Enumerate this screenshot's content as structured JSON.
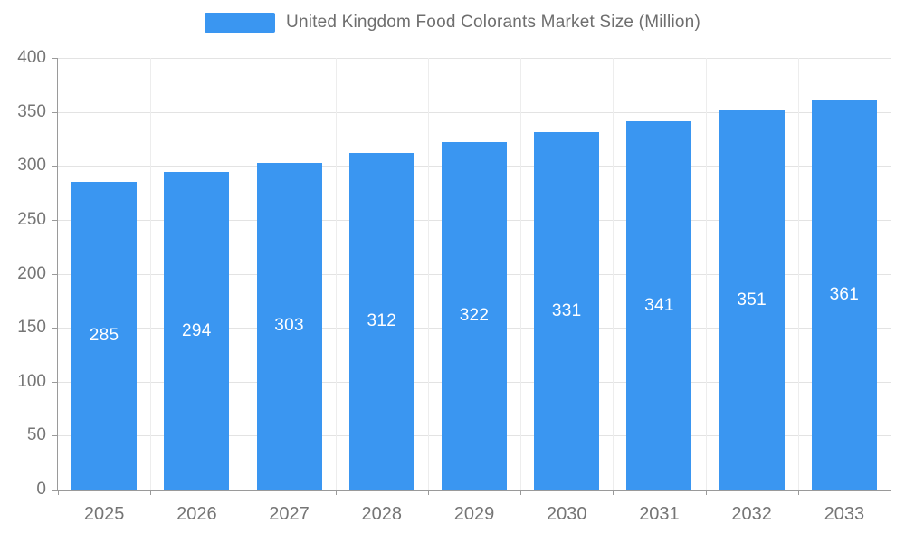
{
  "legend": {
    "title": "United Kingdom Food Colorants Market Size (Million)"
  },
  "chart_data": {
    "type": "bar",
    "title": "United Kingdom Food Colorants Market Size (Million)",
    "categories": [
      "2025",
      "2026",
      "2027",
      "2028",
      "2029",
      "2030",
      "2031",
      "2032",
      "2033"
    ],
    "values": [
      285,
      294,
      303,
      312,
      322,
      331,
      341,
      351,
      361
    ],
    "xlabel": "",
    "ylabel": "",
    "ylim": [
      0,
      400
    ],
    "ytick_step": 50,
    "ytick_labels": [
      "0",
      "50",
      "100",
      "150",
      "200",
      "250",
      "300",
      "350",
      "400"
    ],
    "grid": true,
    "legend_position": "top",
    "bar_color": "#3a96f1",
    "value_label_color": "#ffffff",
    "axis_label_color": "#757575",
    "title_color": "#6e6e6e"
  }
}
